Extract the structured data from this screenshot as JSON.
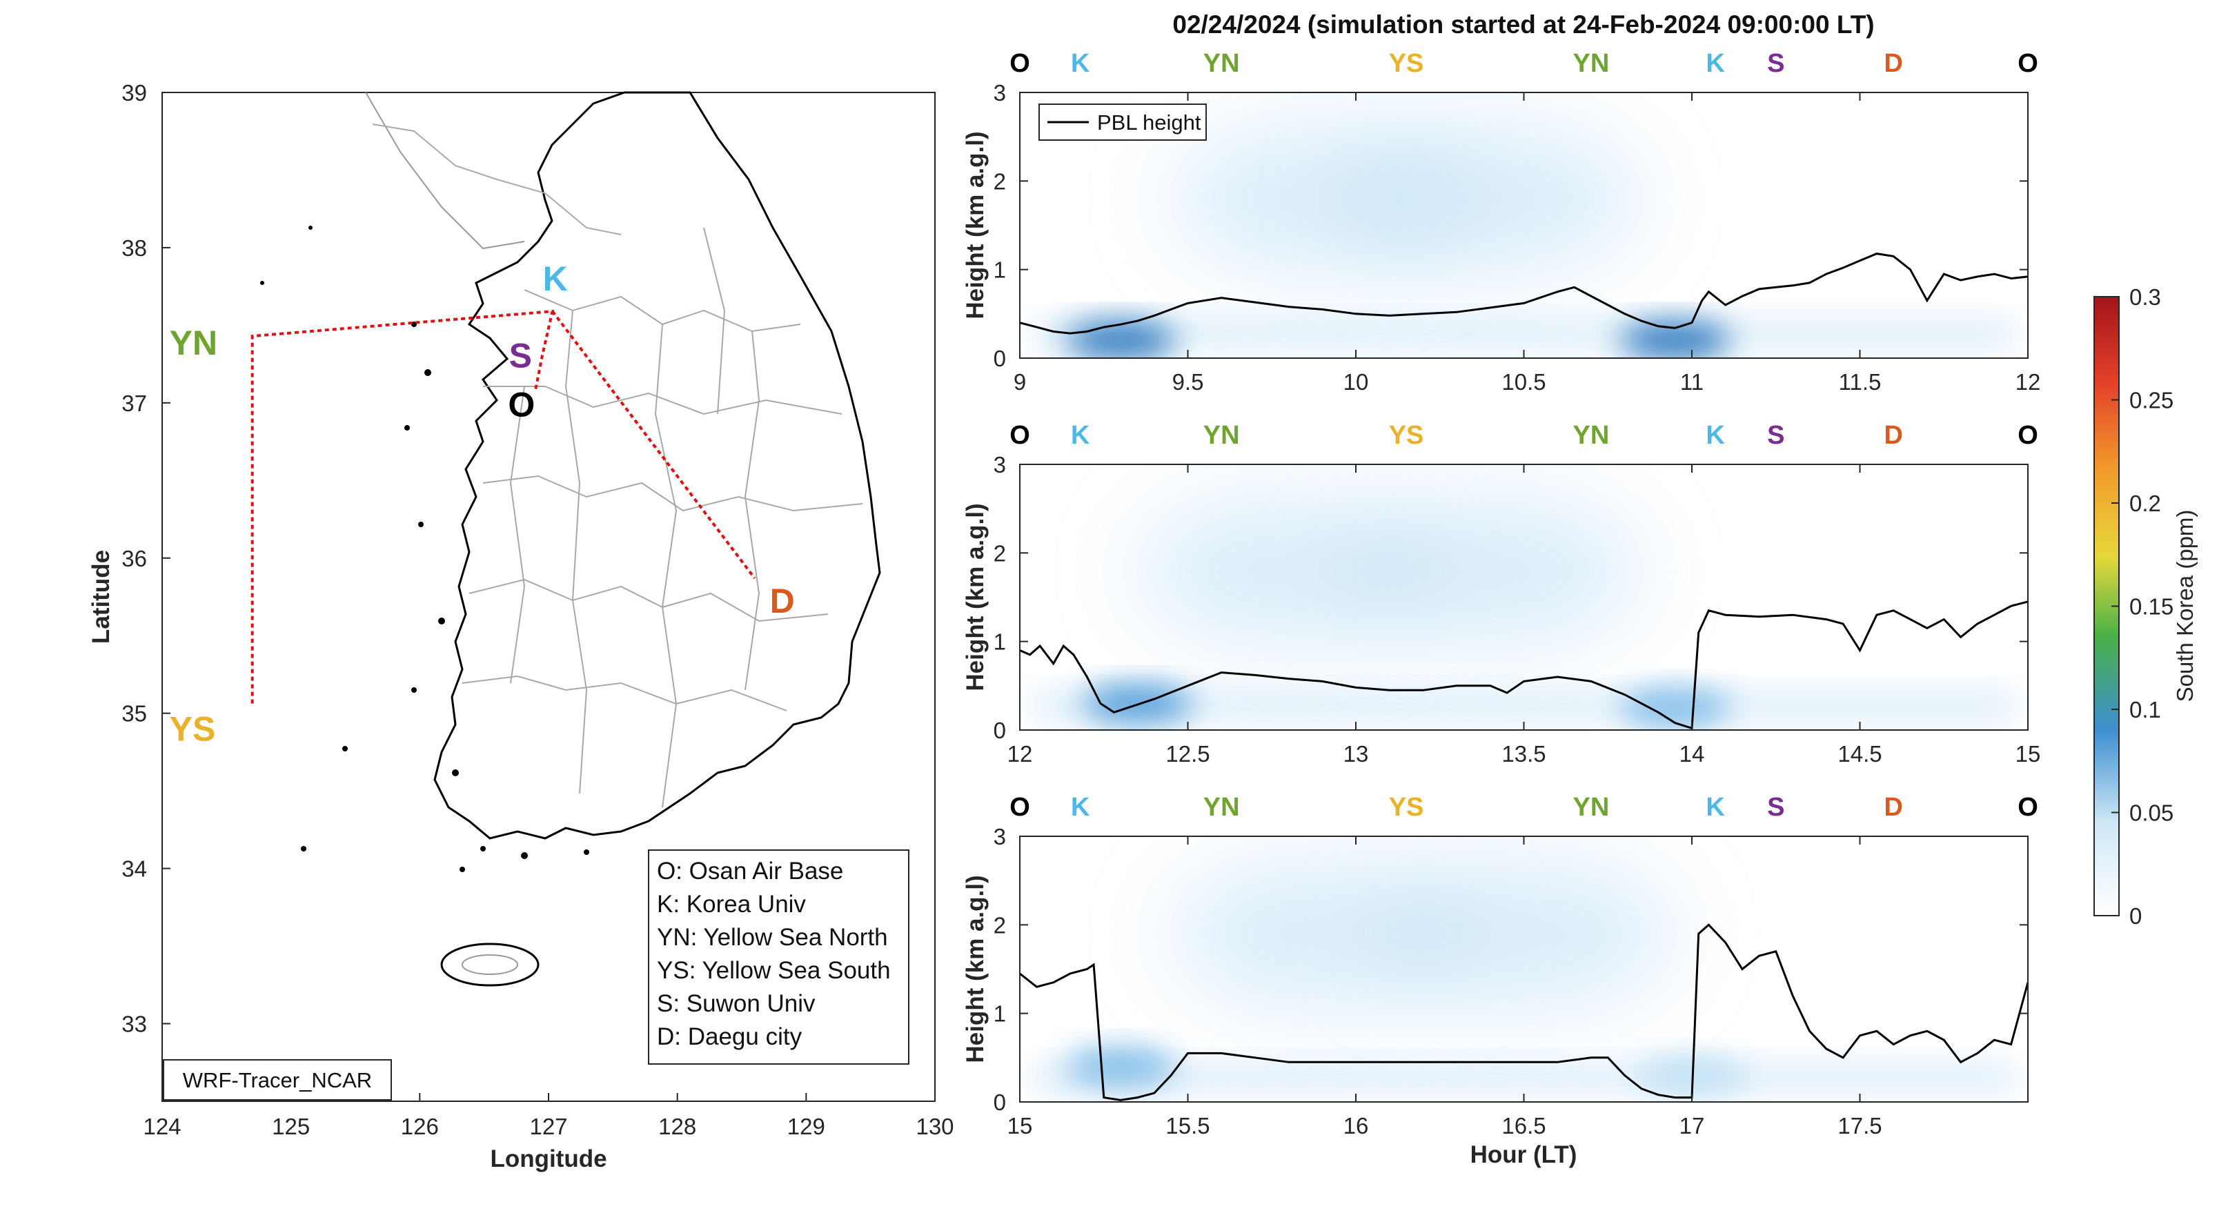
{
  "title": "02/24/2024 (simulation started at 24-Feb-2024 09:00:00 LT)",
  "colors": {
    "O": "#000000",
    "K": "#4db8e8",
    "YN": "#6fa52f",
    "YS": "#e9b22a",
    "S": "#7a2d91",
    "D": "#d9591f",
    "route": "#e01010",
    "pbl": "#000000"
  },
  "map": {
    "xlabel": "Longitude",
    "ylabel": "Latitude",
    "xlim": [
      124,
      130
    ],
    "ylim": [
      32.5,
      39
    ],
    "xticks": [
      "124",
      "125",
      "126",
      "127",
      "128",
      "129",
      "130"
    ],
    "yticks": [
      "33",
      "34",
      "35",
      "36",
      "37",
      "38",
      "39"
    ],
    "model_label": "WRF-Tracer_NCAR",
    "sites": [
      {
        "code": "O",
        "lon": 126.9,
        "lat": 37.09
      },
      {
        "code": "K",
        "lon": 127.03,
        "lat": 37.59
      },
      {
        "code": "S",
        "lon": 126.95,
        "lat": 37.3
      },
      {
        "code": "D",
        "lon": 128.6,
        "lat": 35.87
      },
      {
        "code": "YN",
        "lon": 124.7,
        "lat": 37.4
      },
      {
        "code": "YS",
        "lon": 124.7,
        "lat": 35.0
      }
    ],
    "legend": [
      "O: Osan Air Base",
      "K: Korea Univ",
      "YN: Yellow Sea North",
      "YS: Yellow Sea South",
      "S: Suwon Univ",
      "D: Daegu city"
    ]
  },
  "chart_data": {
    "type": "heatmap",
    "title": "02/24/2024 (simulation started at 24-Feb-2024 09:00:00 LT)",
    "xlabel": "Hour (LT)",
    "ylabel": "Height (km a.g.l)",
    "colorbar": {
      "label": "South Korea (ppm)",
      "range": [
        0,
        0.3
      ],
      "ticks": [
        "0",
        "0.05",
        "0.1",
        "0.15",
        "0.2",
        "0.25",
        "0.3"
      ]
    },
    "legend": {
      "entries": [
        "PBL height"
      ],
      "placement": "top-left"
    },
    "panels": [
      {
        "xlim": [
          9,
          12
        ],
        "ylim": [
          0,
          3
        ],
        "xticks": [
          "9",
          "9.5",
          "10",
          "10.5",
          "11",
          "11.5",
          "12"
        ],
        "yticks": [
          "0",
          "1",
          "2",
          "3"
        ],
        "site_markers": [
          {
            "code": "O",
            "x": 9.0
          },
          {
            "code": "K",
            "x": 9.18
          },
          {
            "code": "YN",
            "x": 9.6
          },
          {
            "code": "YS",
            "x": 10.15
          },
          {
            "code": "YN",
            "x": 10.7
          },
          {
            "code": "K",
            "x": 11.07
          },
          {
            "code": "S",
            "x": 11.25
          },
          {
            "code": "D",
            "x": 11.6
          },
          {
            "code": "O",
            "x": 12.0
          }
        ],
        "pbl": {
          "x": [
            9.0,
            9.05,
            9.1,
            9.15,
            9.2,
            9.25,
            9.3,
            9.35,
            9.4,
            9.45,
            9.5,
            9.6,
            9.7,
            9.8,
            9.9,
            10.0,
            10.1,
            10.2,
            10.3,
            10.4,
            10.5,
            10.6,
            10.65,
            10.7,
            10.75,
            10.8,
            10.85,
            10.9,
            10.95,
            11.0,
            11.03,
            11.05,
            11.1,
            11.15,
            11.2,
            11.25,
            11.3,
            11.35,
            11.4,
            11.45,
            11.5,
            11.55,
            11.6,
            11.65,
            11.7,
            11.75,
            11.8,
            11.85,
            11.9,
            11.95,
            12.0
          ],
          "y": [
            0.4,
            0.35,
            0.3,
            0.28,
            0.3,
            0.35,
            0.38,
            0.42,
            0.48,
            0.55,
            0.62,
            0.68,
            0.63,
            0.58,
            0.55,
            0.5,
            0.48,
            0.5,
            0.52,
            0.57,
            0.62,
            0.75,
            0.8,
            0.7,
            0.6,
            0.5,
            0.42,
            0.36,
            0.34,
            0.4,
            0.65,
            0.75,
            0.6,
            0.7,
            0.78,
            0.8,
            0.82,
            0.85,
            0.95,
            1.02,
            1.1,
            1.18,
            1.15,
            1.0,
            0.65,
            0.95,
            0.88,
            0.92,
            0.95,
            0.9,
            0.92
          ]
        },
        "tracer_blobs": [
          {
            "x": 9.3,
            "z": 0.2,
            "value": 0.1
          },
          {
            "x": 10.95,
            "z": 0.2,
            "value": 0.09
          },
          {
            "x": 9.9,
            "z": 1.8,
            "value": 0.03
          },
          {
            "x": 10.4,
            "z": 1.8,
            "value": 0.03
          }
        ]
      },
      {
        "xlim": [
          12,
          15
        ],
        "ylim": [
          0,
          3
        ],
        "xticks": [
          "12",
          "12.5",
          "13",
          "13.5",
          "14",
          "14.5",
          "15"
        ],
        "yticks": [
          "0",
          "1",
          "2",
          "3"
        ],
        "site_markers": [
          {
            "code": "O",
            "x": 12.0
          },
          {
            "code": "K",
            "x": 12.18
          },
          {
            "code": "YN",
            "x": 12.6
          },
          {
            "code": "YS",
            "x": 13.15
          },
          {
            "code": "YN",
            "x": 13.7
          },
          {
            "code": "K",
            "x": 14.07
          },
          {
            "code": "S",
            "x": 14.25
          },
          {
            "code": "D",
            "x": 14.6
          },
          {
            "code": "O",
            "x": 15.0
          }
        ],
        "pbl": {
          "x": [
            12.0,
            12.03,
            12.06,
            12.1,
            12.13,
            12.16,
            12.2,
            12.24,
            12.28,
            12.32,
            12.36,
            12.4,
            12.5,
            12.6,
            12.7,
            12.8,
            12.9,
            13.0,
            13.1,
            13.2,
            13.3,
            13.4,
            13.45,
            13.5,
            13.6,
            13.7,
            13.8,
            13.9,
            13.95,
            14.0,
            14.02,
            14.05,
            14.1,
            14.2,
            14.3,
            14.4,
            14.45,
            14.5,
            14.55,
            14.6,
            14.65,
            14.7,
            14.75,
            14.8,
            14.85,
            14.9,
            14.95,
            15.0
          ],
          "y": [
            0.9,
            0.85,
            0.95,
            0.75,
            0.95,
            0.85,
            0.6,
            0.3,
            0.2,
            0.25,
            0.3,
            0.35,
            0.5,
            0.65,
            0.62,
            0.58,
            0.55,
            0.48,
            0.45,
            0.45,
            0.5,
            0.5,
            0.42,
            0.55,
            0.6,
            0.55,
            0.4,
            0.2,
            0.08,
            0.02,
            1.1,
            1.35,
            1.3,
            1.28,
            1.3,
            1.25,
            1.2,
            0.9,
            1.3,
            1.35,
            1.25,
            1.15,
            1.25,
            1.05,
            1.2,
            1.3,
            1.4,
            1.45
          ]
        },
        "tracer_blobs": [
          {
            "x": 12.35,
            "z": 0.3,
            "value": 0.07
          },
          {
            "x": 13.95,
            "z": 0.25,
            "value": 0.04
          },
          {
            "x": 12.8,
            "z": 1.8,
            "value": 0.02
          },
          {
            "x": 13.4,
            "z": 1.8,
            "value": 0.02
          }
        ]
      },
      {
        "xlim": [
          15,
          18
        ],
        "ylim": [
          0,
          3
        ],
        "xticks": [
          "15",
          "15.5",
          "16",
          "16.5",
          "17",
          "17.5"
        ],
        "yticks": [
          "0",
          "1",
          "2",
          "3"
        ],
        "site_markers": [
          {
            "code": "O",
            "x": 15.0
          },
          {
            "code": "K",
            "x": 15.18
          },
          {
            "code": "YN",
            "x": 15.6
          },
          {
            "code": "YS",
            "x": 16.15
          },
          {
            "code": "YN",
            "x": 16.7
          },
          {
            "code": "K",
            "x": 17.07
          },
          {
            "code": "S",
            "x": 17.25
          },
          {
            "code": "D",
            "x": 17.6
          },
          {
            "code": "O",
            "x": 18.0
          }
        ],
        "pbl": {
          "x": [
            15.0,
            15.05,
            15.1,
            15.15,
            15.2,
            15.22,
            15.25,
            15.3,
            15.35,
            15.4,
            15.45,
            15.5,
            15.6,
            15.7,
            15.8,
            15.9,
            16.0,
            16.2,
            16.4,
            16.6,
            16.7,
            16.75,
            16.8,
            16.85,
            16.9,
            16.95,
            17.0,
            17.02,
            17.05,
            17.1,
            17.15,
            17.2,
            17.25,
            17.3,
            17.35,
            17.4,
            17.45,
            17.5,
            17.55,
            17.6,
            17.65,
            17.7,
            17.75,
            17.8,
            17.85,
            17.9,
            17.95,
            18.0
          ],
          "y": [
            1.45,
            1.3,
            1.35,
            1.45,
            1.5,
            1.55,
            0.05,
            0.02,
            0.05,
            0.1,
            0.3,
            0.55,
            0.55,
            0.5,
            0.45,
            0.45,
            0.45,
            0.45,
            0.45,
            0.45,
            0.5,
            0.5,
            0.3,
            0.15,
            0.08,
            0.05,
            0.05,
            1.9,
            2.0,
            1.8,
            1.5,
            1.65,
            1.7,
            1.2,
            0.8,
            0.6,
            0.5,
            0.75,
            0.8,
            0.65,
            0.75,
            0.8,
            0.7,
            0.45,
            0.55,
            0.7,
            0.65,
            1.35
          ]
        },
        "tracer_blobs": [
          {
            "x": 15.3,
            "z": 0.4,
            "value": 0.05
          },
          {
            "x": 17.0,
            "z": 0.3,
            "value": 0.03
          },
          {
            "x": 15.9,
            "z": 1.9,
            "value": 0.02
          },
          {
            "x": 16.5,
            "z": 1.9,
            "value": 0.02
          }
        ]
      }
    ]
  }
}
